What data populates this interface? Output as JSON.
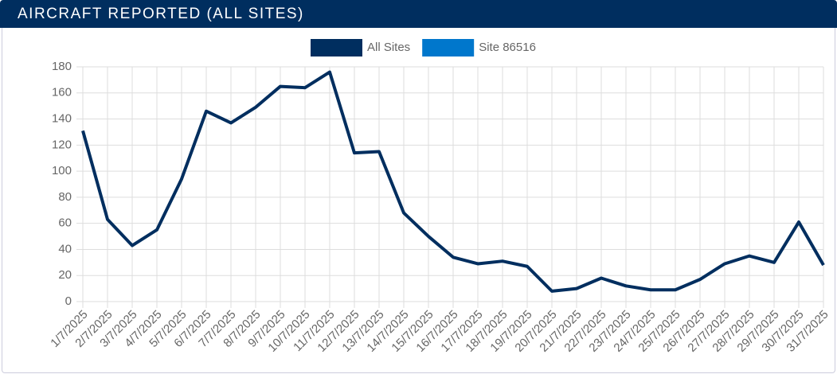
{
  "header": {
    "title": "AIRCRAFT REPORTED (ALL SITES)"
  },
  "chart_data": {
    "type": "line",
    "categories": [
      "1/7/2025",
      "2/7/2025",
      "3/7/2025",
      "4/7/2025",
      "5/7/2025",
      "6/7/2025",
      "7/7/2025",
      "8/7/2025",
      "9/7/2025",
      "10/7/2025",
      "11/7/2025",
      "12/7/2025",
      "13/7/2025",
      "14/7/2025",
      "15/7/2025",
      "16/7/2025",
      "17/7/2025",
      "18/7/2025",
      "19/7/2025",
      "20/7/2025",
      "21/7/2025",
      "22/7/2025",
      "23/7/2025",
      "24/7/2025",
      "25/7/2025",
      "26/7/2025",
      "27/7/2025",
      "28/7/2025",
      "29/7/2025",
      "30/7/2025",
      "31/7/2025"
    ],
    "series": [
      {
        "name": "All Sites",
        "color": "#002e5f",
        "values": [
          131,
          63,
          43,
          55,
          94,
          146,
          137,
          149,
          165,
          164,
          176,
          114,
          115,
          68,
          50,
          34,
          29,
          31,
          27,
          8,
          10,
          18,
          12,
          9,
          9,
          17,
          29,
          35,
          30,
          61,
          28
        ]
      },
      {
        "name": "Site 86516",
        "color": "#0077cc",
        "values": [
          null,
          null,
          null,
          null,
          null,
          null,
          null,
          null,
          null,
          null,
          null,
          null,
          null,
          null,
          null,
          null,
          null,
          null,
          null,
          null,
          null,
          null,
          null,
          null,
          null,
          null,
          null,
          null,
          null,
          null,
          null
        ]
      }
    ],
    "ylim": [
      0,
      180
    ],
    "yticks": [
      0,
      20,
      40,
      60,
      80,
      100,
      120,
      140,
      160,
      180
    ],
    "grid": true,
    "legend": "top"
  }
}
